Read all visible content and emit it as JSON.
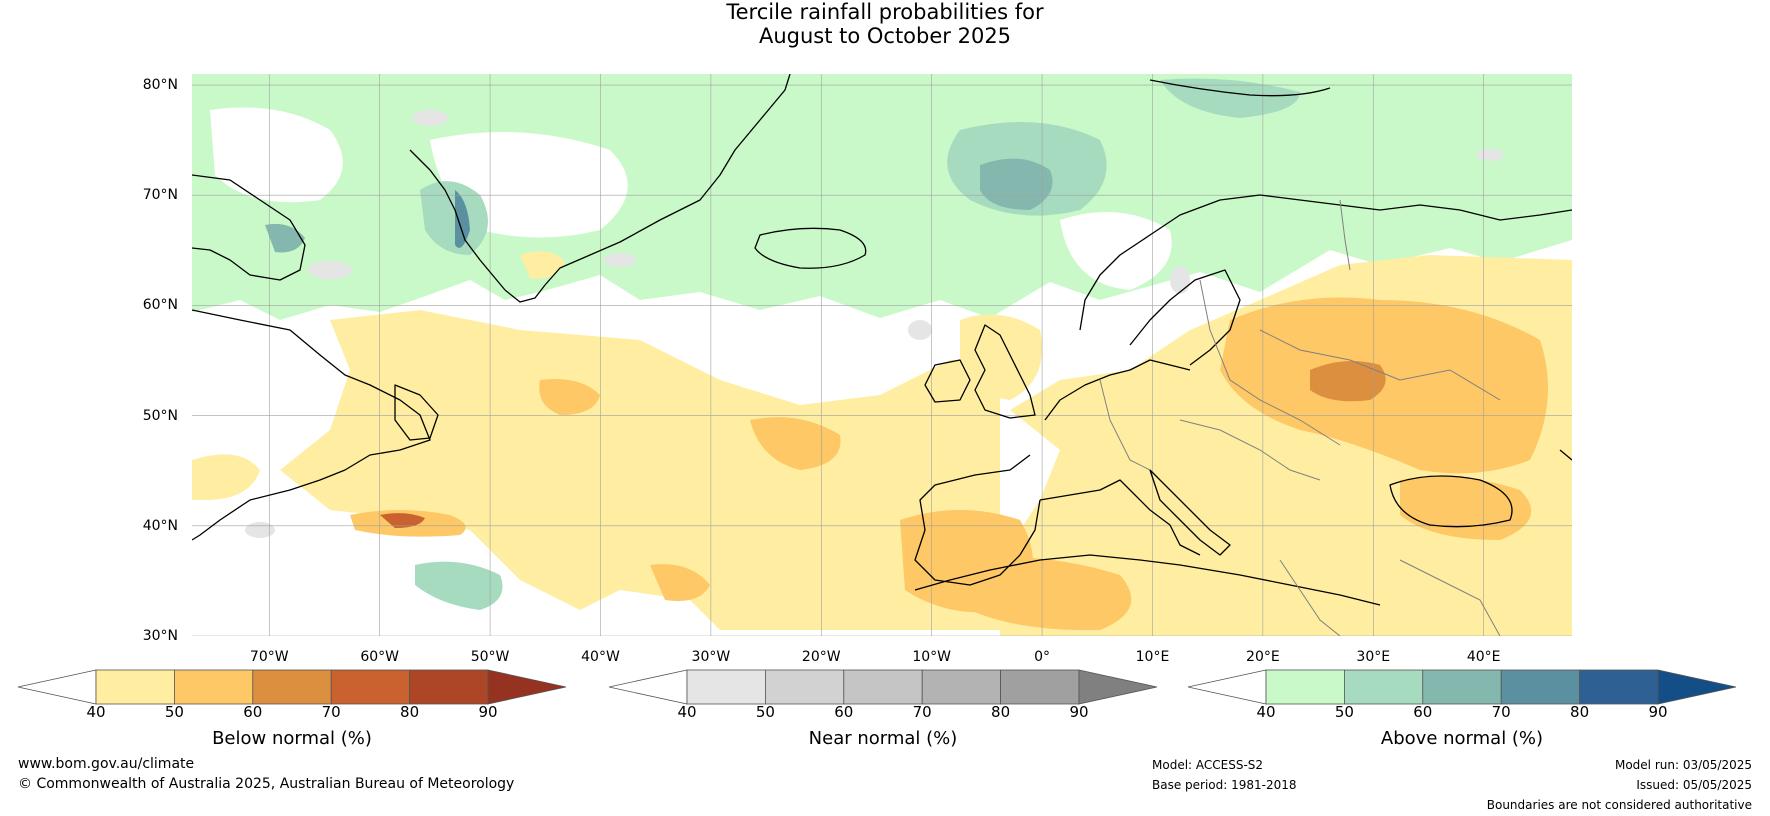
{
  "title": {
    "line1": "Tercile rainfall probabilities for",
    "line2": "August to October 2025"
  },
  "map": {
    "lat_labels": [
      "80°N",
      "70°N",
      "60°N",
      "50°N",
      "40°N",
      "30°N"
    ],
    "lon_labels": [
      "70°W",
      "60°W",
      "50°W",
      "40°W",
      "30°W",
      "20°W",
      "10°W",
      "0°",
      "10°E",
      "20°E",
      "30°E",
      "40°E"
    ],
    "lat_range": [
      30,
      81
    ],
    "lon_range": [
      -77,
      48
    ],
    "colors": {
      "ocean_white": "#ffffff",
      "coast": "#000000",
      "borders": "#808080",
      "grid": "#a0a0a0"
    }
  },
  "colorbars": [
    {
      "title": "Below normal (%)",
      "ticks": [
        "40",
        "50",
        "60",
        "70",
        "80",
        "90"
      ],
      "colors": [
        "#ffeea1",
        "#fdc865",
        "#dd8f40",
        "#c9622e",
        "#ad4626"
      ],
      "over_color": "#953220"
    },
    {
      "title": "Near normal (%)",
      "ticks": [
        "40",
        "50",
        "60",
        "70",
        "80",
        "90"
      ],
      "colors": [
        "#e5e5e5",
        "#d2d2d2",
        "#c5c5c5",
        "#b3b3b3",
        "#a0a0a0"
      ],
      "over_color": "#808080"
    },
    {
      "title": "Above normal (%)",
      "ticks": [
        "40",
        "50",
        "60",
        "70",
        "80",
        "90"
      ],
      "colors": [
        "#c9f9c9",
        "#a6dbbf",
        "#84b8ae",
        "#5a90a0",
        "#2e6094"
      ],
      "over_color": "#134f86"
    }
  ],
  "footer": {
    "website": "www.bom.gov.au/climate",
    "copyright": "© Commonwealth of Australia 2025, Australian Bureau of Meteorology",
    "model": "Model: ACCESS-S2",
    "base_period": "Base period: 1981-2018",
    "model_run": "Model run: 03/05/2025",
    "issued": "Issued: 05/05/2025",
    "disclaimer": "Boundaries are not considered authoritative"
  }
}
